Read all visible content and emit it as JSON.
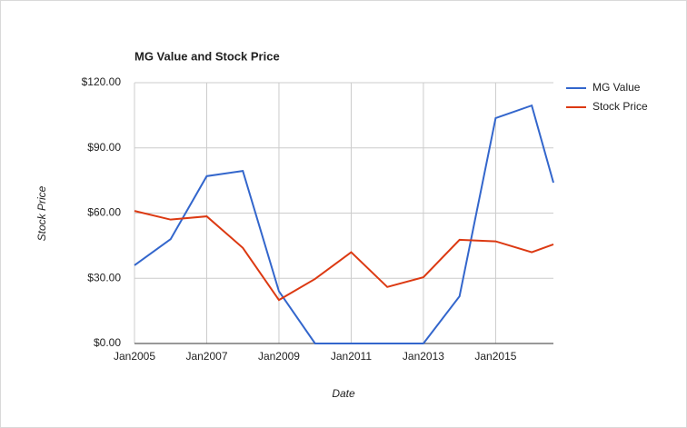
{
  "chart_data": {
    "type": "line",
    "title": "MG Value and Stock Price",
    "x_label": "Date",
    "y_label": "Stock Price",
    "x": [
      2005,
      2006,
      2007,
      2008,
      2009,
      2010,
      2011,
      2012,
      2013,
      2014,
      2015,
      2016,
      2016.6
    ],
    "series": [
      {
        "name": "MG Value",
        "color": "#3366cc",
        "values": [
          36,
          48,
          77,
          79.4,
          24,
          0,
          0,
          0,
          0,
          21.7,
          103.7,
          109.5,
          74
        ]
      },
      {
        "name": "Stock Price",
        "color": "#dc3912",
        "values": [
          61,
          57,
          58.5,
          44,
          20,
          29.7,
          42,
          26,
          30.5,
          47.7,
          47,
          42,
          45.6
        ]
      }
    ],
    "xlim": [
      2005,
      2016.6
    ],
    "xticks": [
      {
        "value": 2005,
        "label": "Jan2005"
      },
      {
        "value": 2007,
        "label": "Jan2007"
      },
      {
        "value": 2009,
        "label": "Jan2009"
      },
      {
        "value": 2011,
        "label": "Jan2011"
      },
      {
        "value": 2013,
        "label": "Jan2013"
      },
      {
        "value": 2015,
        "label": "Jan2015"
      }
    ],
    "ylim": [
      0,
      120
    ],
    "yticks": [
      {
        "value": 0,
        "label": "$0.00"
      },
      {
        "value": 30,
        "label": "$30.00"
      },
      {
        "value": 60,
        "label": "$60.00"
      },
      {
        "value": 90,
        "label": "$90.00"
      },
      {
        "value": 120,
        "label": "$120.00"
      }
    ],
    "grid": true,
    "legend": "right"
  }
}
